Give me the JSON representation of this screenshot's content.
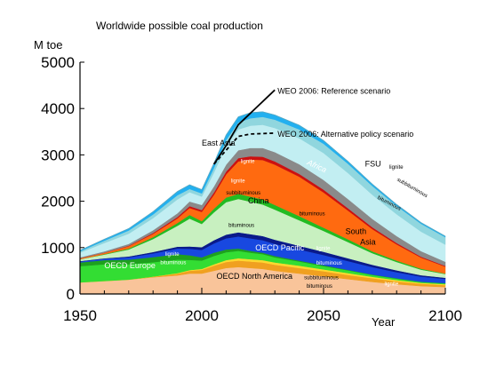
{
  "chart_data": {
    "type": "area",
    "title": "Worldwide possible coal production",
    "ylabel": "M toe",
    "xlabel": "Year",
    "xlim": [
      1950,
      2100
    ],
    "ylim": [
      0,
      5000
    ],
    "x_ticks": [
      1950,
      2000,
      2050,
      2100
    ],
    "y_ticks": [
      0,
      1000,
      2000,
      3000,
      4000,
      5000
    ],
    "x": [
      1950,
      1960,
      1970,
      1980,
      1990,
      1995,
      2000,
      2005,
      2010,
      2015,
      2020,
      2025,
      2030,
      2040,
      2050,
      2060,
      2070,
      2080,
      2090,
      2100
    ],
    "series": [
      {
        "name": "OECD North America",
        "color": "#f9c49a",
        "values": [
          250,
          280,
          310,
          360,
          400,
          440,
          440,
          500,
          560,
          580,
          560,
          540,
          500,
          440,
          380,
          320,
          260,
          210,
          170,
          150
        ]
      },
      {
        "name": "OECD North America subbituminous",
        "color": "#f0a020",
        "values": [
          0,
          0,
          0,
          10,
          40,
          60,
          80,
          110,
          130,
          140,
          140,
          140,
          130,
          120,
          110,
          90,
          80,
          60,
          50,
          40
        ]
      },
      {
        "name": "OECD North America lignite",
        "color": "#ffd830",
        "values": [
          0,
          0,
          0,
          5,
          10,
          15,
          20,
          30,
          40,
          50,
          50,
          50,
          50,
          50,
          40,
          40,
          30,
          30,
          20,
          20
        ]
      },
      {
        "name": "OECD Europe",
        "color": "#33dd33",
        "values": [
          350,
          360,
          330,
          310,
          290,
          220,
          180,
          180,
          170,
          160,
          140,
          130,
          110,
          90,
          70,
          60,
          40,
          30,
          20,
          20
        ]
      },
      {
        "name": "OECD Europe lignite",
        "color": "#1ea01e",
        "values": [
          80,
          90,
          100,
          110,
          120,
          100,
          70,
          70,
          60,
          50,
          40,
          30,
          30,
          20,
          20,
          10,
          10,
          10,
          5,
          5
        ]
      },
      {
        "name": "OECD Pacific",
        "color": "#1848e0",
        "values": [
          20,
          30,
          50,
          80,
          120,
          140,
          160,
          200,
          240,
          260,
          270,
          270,
          260,
          240,
          220,
          190,
          160,
          130,
          110,
          90
        ]
      },
      {
        "name": "OECD Pacific subbituminous",
        "color": "#0a1a8a",
        "values": [
          10,
          10,
          20,
          30,
          40,
          50,
          60,
          70,
          80,
          90,
          90,
          90,
          90,
          80,
          70,
          60,
          50,
          40,
          30,
          25
        ]
      },
      {
        "name": "China",
        "color": "#c8f0c0",
        "values": [
          40,
          80,
          150,
          280,
          450,
          600,
          500,
          600,
          700,
          720,
          700,
          680,
          650,
          550,
          450,
          350,
          250,
          180,
          120,
          80
        ]
      },
      {
        "name": "China lignite",
        "color": "#22bb22",
        "values": [
          0,
          10,
          20,
          40,
          60,
          80,
          60,
          80,
          100,
          110,
          110,
          110,
          100,
          90,
          70,
          60,
          40,
          30,
          20,
          10
        ]
      },
      {
        "name": "South Asia",
        "color": "#ff6a10",
        "values": [
          20,
          30,
          50,
          70,
          100,
          150,
          200,
          300,
          500,
          700,
          800,
          850,
          870,
          850,
          760,
          620,
          480,
          350,
          240,
          150
        ]
      },
      {
        "name": "South Asia lignite",
        "color": "#cc1010",
        "values": [
          0,
          0,
          10,
          20,
          30,
          40,
          40,
          50,
          60,
          70,
          70,
          70,
          70,
          60,
          60,
          50,
          40,
          30,
          20,
          15
        ]
      },
      {
        "name": "Africa",
        "color": "#8a8a8a",
        "values": [
          20,
          30,
          40,
          60,
          80,
          100,
          110,
          130,
          150,
          170,
          180,
          190,
          200,
          210,
          210,
          200,
          180,
          150,
          120,
          90
        ]
      },
      {
        "name": "FSU",
        "color": "#c2eef2",
        "values": [
          100,
          180,
          220,
          260,
          300,
          200,
          180,
          300,
          400,
          450,
          480,
          500,
          520,
          560,
          580,
          560,
          520,
          470,
          420,
          370
        ]
      },
      {
        "name": "FSU bituminous",
        "color": "#90d6de",
        "values": [
          30,
          50,
          70,
          80,
          90,
          70,
          70,
          100,
          130,
          150,
          160,
          170,
          180,
          190,
          200,
          200,
          190,
          180,
          170,
          160
        ]
      },
      {
        "name": "East Asia",
        "color": "#22b0f0",
        "values": [
          20,
          30,
          40,
          60,
          80,
          90,
          80,
          100,
          110,
          120,
          120,
          110,
          100,
          90,
          70,
          50,
          40,
          30,
          25,
          20
        ]
      }
    ],
    "scenarios": [
      {
        "name": "WEO 2006: Reference scenario",
        "style": "solid",
        "x": [
          2005,
          2010,
          2015,
          2020,
          2025,
          2030
        ],
        "values": [
          2800,
          3200,
          3650,
          3900,
          4150,
          4400
        ]
      },
      {
        "name": "WEO 2006: Alternative policy scenario",
        "style": "dashed",
        "x": [
          2005,
          2010,
          2015,
          2020,
          2025,
          2030
        ],
        "values": [
          2800,
          3100,
          3400,
          3450,
          3460,
          3470
        ]
      }
    ],
    "annotations": [
      {
        "text": "East Asia",
        "x": 2000,
        "y": 3200,
        "color": "#000000",
        "size": 9
      },
      {
        "text": "FSU",
        "x": 2067,
        "y": 2750,
        "color": "#000000",
        "size": 9
      },
      {
        "text": "lignite",
        "x": 2077,
        "y": 2700,
        "color": "#000000",
        "size": 6
      },
      {
        "text": "subbituminous",
        "x": 2080,
        "y": 2450,
        "color": "#000000",
        "size": 6,
        "rotate": 30
      },
      {
        "text": "bituminous",
        "x": 2072,
        "y": 2060,
        "color": "#000000",
        "size": 6,
        "rotate": 28
      },
      {
        "text": "Africa",
        "x": 2043,
        "y": 2800,
        "color": "#ffffff",
        "size": 9,
        "italic": true,
        "rotate": 25
      },
      {
        "text": "lignite",
        "x": 2016,
        "y": 2830,
        "color": "#ffffff",
        "size": 6
      },
      {
        "text": "lignite",
        "x": 2012,
        "y": 2400,
        "color": "#ffffff",
        "size": 6
      },
      {
        "text": "subbituminous",
        "x": 2010,
        "y": 2150,
        "color": "#000000",
        "size": 6
      },
      {
        "text": "China",
        "x": 2019,
        "y": 1950,
        "color": "#000000",
        "size": 9
      },
      {
        "text": "bituminous",
        "x": 2011,
        "y": 1450,
        "color": "#000000",
        "size": 6
      },
      {
        "text": "bituminous",
        "x": 2040,
        "y": 1700,
        "color": "#000000",
        "size": 6
      },
      {
        "text": "South",
        "x": 2059,
        "y": 1290,
        "color": "#000000",
        "size": 9
      },
      {
        "text": "Asia",
        "x": 2065,
        "y": 1060,
        "color": "#000000",
        "size": 9
      },
      {
        "text": "OECD Pacific",
        "x": 2022,
        "y": 940,
        "color": "#ffffff",
        "size": 9
      },
      {
        "text": "lignite",
        "x": 2047,
        "y": 950,
        "color": "#ffffff",
        "size": 6
      },
      {
        "text": "bituminous",
        "x": 2047,
        "y": 630,
        "color": "#ffffff",
        "size": 6
      },
      {
        "text": "lignite",
        "x": 1985,
        "y": 820,
        "color": "#ffffff",
        "size": 6
      },
      {
        "text": "OECD Europe",
        "x": 1960,
        "y": 560,
        "color": "#ffffff",
        "size": 9
      },
      {
        "text": "bituminous",
        "x": 1983,
        "y": 640,
        "color": "#ffffff",
        "size": 6
      },
      {
        "text": "OECD North America",
        "x": 2006,
        "y": 330,
        "color": "#000000",
        "size": 9
      },
      {
        "text": "subbituminous",
        "x": 2042,
        "y": 320,
        "color": "#000000",
        "size": 6
      },
      {
        "text": "bituminous",
        "x": 2043,
        "y": 130,
        "color": "#000000",
        "size": 6
      },
      {
        "text": "lignite",
        "x": 2075,
        "y": 180,
        "color": "#ffffff",
        "size": 6
      }
    ],
    "grid": false,
    "legend": "none"
  }
}
